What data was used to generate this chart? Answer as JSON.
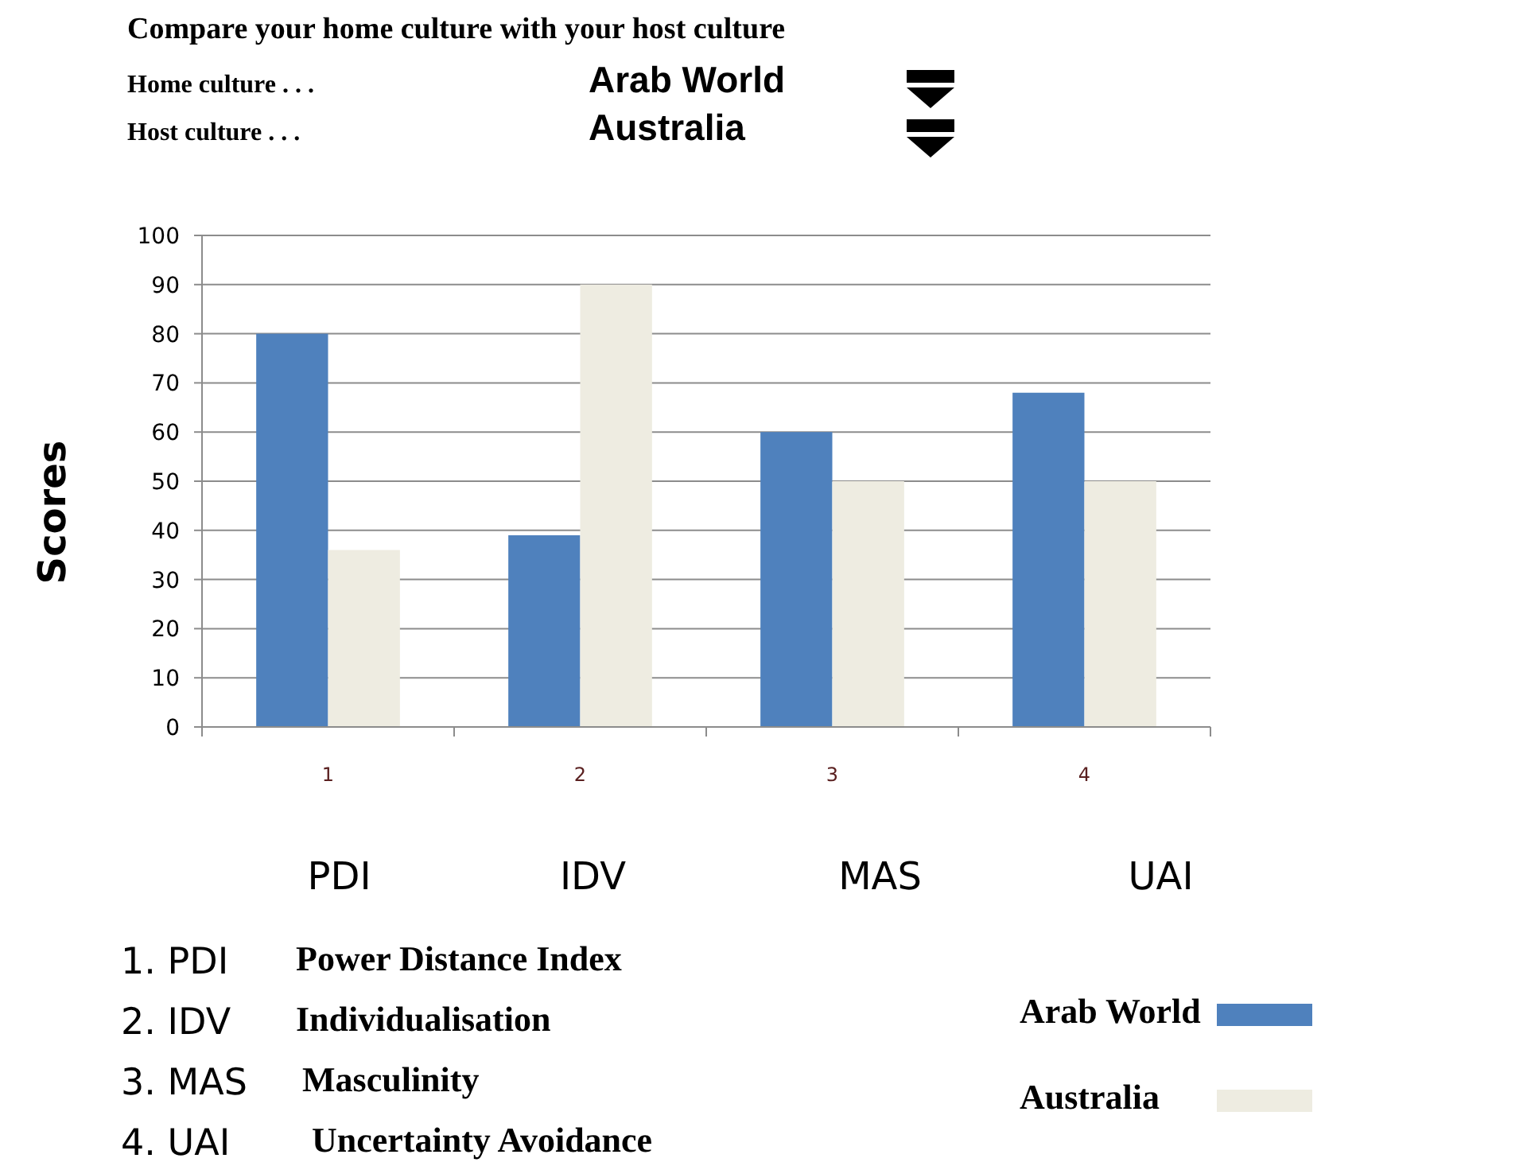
{
  "chart_data": {
    "type": "bar",
    "title": "Compare your home culture with your host culture",
    "ylabel": "Scores",
    "categories": [
      "1",
      "2",
      "3",
      "4"
    ],
    "series": [
      {
        "name": "Arab World",
        "color": "#4f81bd",
        "values": [
          80,
          39,
          60,
          68
        ]
      },
      {
        "name": "Australia",
        "color": "#eeece1",
        "values": [
          36,
          90,
          50,
          50
        ]
      }
    ],
    "ylim": [
      0,
      100
    ],
    "yticks": [
      0,
      10,
      20,
      30,
      40,
      50,
      60,
      70,
      80,
      90,
      100
    ],
    "grid": "y",
    "legend": "bottom right",
    "annotations": [
      "Home culture . . .",
      "Arab World",
      "Host culture . . .",
      "Australia",
      "PDI",
      "IDV",
      "MAS",
      "UAI",
      "1. PDI",
      "Power Distance Index",
      "2. IDV",
      "Individualisation",
      "3. MAS",
      "Masculinity",
      "4. UAI",
      "Uncertainty Avoidance"
    ]
  }
}
